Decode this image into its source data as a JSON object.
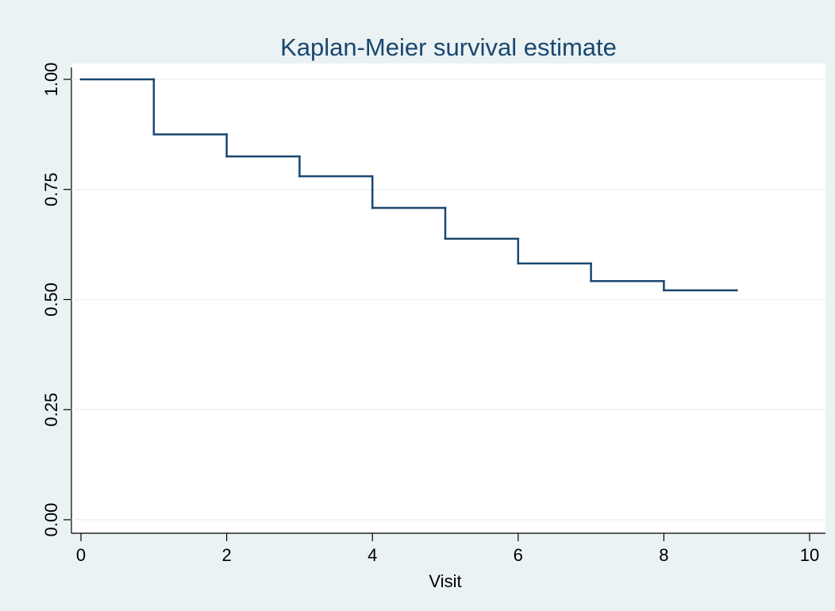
{
  "chart_data": {
    "type": "step",
    "title": "Kaplan-Meier survival estimate",
    "x_label": "Visit",
    "x": [
      0,
      1,
      2,
      3,
      4,
      5,
      6,
      7,
      8,
      9
    ],
    "values": [
      1,
      0.875,
      0.825,
      0.78,
      0.708,
      0.638,
      0.582,
      0.542,
      0.521,
      0.521
    ],
    "color": "#1a476f",
    "xlim": [
      0,
      10
    ],
    "xticks": [
      0,
      2,
      4,
      6,
      8,
      10
    ],
    "ylim": [
      0,
      1
    ],
    "yticks": [
      {
        "value": 0,
        "label": "0.00"
      },
      0.25,
      {
        "value": 0.5,
        "label": "0.50"
      },
      0.75,
      {
        "value": 1,
        "label": "1.00"
      }
    ],
    "grid": true
  }
}
